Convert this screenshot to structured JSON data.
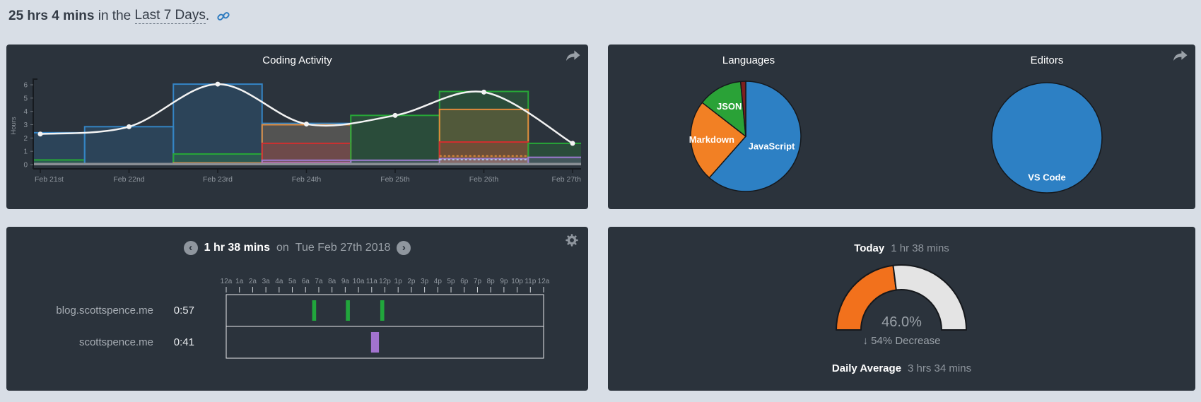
{
  "theme": {
    "page_bg": "#d8dee6",
    "panel_bg": "#2b333c",
    "text_light": "#ffffff",
    "text_muted": "#8f969e",
    "link_blue": "#2e7bbf"
  },
  "header": {
    "total_time": "25 hrs 4 mins",
    "connector": " in the ",
    "range_label": "Last 7 Days",
    "period": ".",
    "link_icon": "chain-link-icon"
  },
  "chart_data": [
    {
      "id": "coding_activity",
      "type": "bar+line",
      "title": "Coding Activity",
      "ylabel": "Hours",
      "ylim": [
        0,
        6
      ],
      "yticks": [
        0,
        1,
        2,
        3,
        4,
        5,
        6
      ],
      "grid": false,
      "categories": [
        "Feb 21st",
        "Feb 22nd",
        "Feb 23rd",
        "Feb 24th",
        "Feb 25th",
        "Feb 26th",
        "Feb 27th"
      ],
      "line_series": {
        "name": "total-hours",
        "color": "#f3f3f3",
        "values": [
          2.3,
          2.85,
          6.05,
          3.05,
          3.7,
          5.45,
          1.6
        ]
      },
      "bar_groups": [
        [
          {
            "hours": 2.4,
            "color": "#3484c4"
          },
          {
            "hours": 0.35,
            "color": "#27a737"
          },
          {
            "hours": 0.08,
            "color": "#8a8f95"
          }
        ],
        [
          {
            "hours": 2.85,
            "color": "#3484c4"
          },
          {
            "hours": 0.08,
            "color": "#8a8f95"
          }
        ],
        [
          {
            "hours": 6.05,
            "color": "#3484c4"
          },
          {
            "hours": 0.8,
            "color": "#27a737"
          },
          {
            "hours": 0.13,
            "color": "#e08a3c"
          },
          {
            "hours": 0.08,
            "color": "#8a8f95"
          }
        ],
        [
          {
            "hours": 3.1,
            "color": "#3484c4"
          },
          {
            "hours": 3.0,
            "color": "#e08a3c"
          },
          {
            "hours": 1.6,
            "color": "#d02f2f"
          },
          {
            "hours": 0.33,
            "color": "#9d7bd0"
          },
          {
            "hours": 0.14,
            "color": "#cc6bbf"
          },
          {
            "hours": 0.08,
            "color": "#8a8f95"
          }
        ],
        [
          {
            "hours": 3.7,
            "color": "#27a737"
          },
          {
            "hours": 0.33,
            "color": "#9d7bd0"
          },
          {
            "hours": 0.08,
            "color": "#8a8f95"
          }
        ],
        [
          {
            "hours": 5.5,
            "color": "#27a737"
          },
          {
            "hours": 4.15,
            "color": "#e08a3c"
          },
          {
            "hours": 1.7,
            "color": "#d02f2f"
          },
          {
            "hours": 0.65,
            "color": "#e08a3c",
            "dashed": true
          },
          {
            "hours": 0.45,
            "color": "#9d7bd0"
          },
          {
            "hours": 0.38,
            "color": "#a9c9e9",
            "dashed": true
          },
          {
            "hours": 0.08,
            "color": "#8a8f95"
          }
        ],
        [
          {
            "hours": 1.6,
            "color": "#27a737"
          },
          {
            "hours": 0.55,
            "color": "#9d7bd0"
          },
          {
            "hours": 0.08,
            "color": "#8a8f95"
          }
        ]
      ]
    },
    {
      "id": "languages",
      "type": "pie",
      "title": "Languages",
      "slices": [
        {
          "label": "JavaScript",
          "percent": 61.5,
          "color": "#2d80c4"
        },
        {
          "label": "Markdown",
          "percent": 24.0,
          "color": "#f28024"
        },
        {
          "label": "JSON",
          "percent": 13.0,
          "color": "#2aa237"
        },
        {
          "label": "",
          "percent": 1.5,
          "color": "#7e1f1f"
        }
      ]
    },
    {
      "id": "editors",
      "type": "pie",
      "title": "Editors",
      "slices": [
        {
          "label": "VS Code",
          "percent": 100,
          "color": "#2d80c4"
        }
      ]
    },
    {
      "id": "daily_timeline",
      "type": "gantt",
      "title_bold": "1 hr 38 mins",
      "title_mid": "on",
      "title_date": "Tue Feb 27th 2018",
      "prev_icon": "‹",
      "next_icon": "›",
      "hour_labels": [
        "12a",
        "1a",
        "2a",
        "3a",
        "4a",
        "5a",
        "6a",
        "7a",
        "8a",
        "9a",
        "10a",
        "11a",
        "12p",
        "1p",
        "2p",
        "3p",
        "4p",
        "5p",
        "6p",
        "7p",
        "8p",
        "9p",
        "10p",
        "11p",
        "12a"
      ],
      "rows": [
        {
          "label": "blog.scottspence.me",
          "duration": "0:57",
          "color": "#21a63c",
          "marks": [
            {
              "start": 6.5,
              "end": 6.8
            },
            {
              "start": 9.05,
              "end": 9.35
            },
            {
              "start": 11.65,
              "end": 11.95
            }
          ]
        },
        {
          "label": "scottspence.me",
          "duration": "0:41",
          "color": "#a273cf",
          "marks": [
            {
              "start": 10.95,
              "end": 11.55
            }
          ]
        }
      ]
    },
    {
      "id": "today_gauge",
      "type": "gauge",
      "label": "Today",
      "value": "1 hr 38 mins",
      "percent": 46.0,
      "percent_label": "46.0%",
      "delta_arrow": "↓",
      "delta_label": "54% Decrease",
      "avg_label": "Daily Average",
      "avg_value": "3 hrs 34 mins",
      "colors": {
        "filled": "#f2711c",
        "empty": "#e4e4e4",
        "outline": "#15181c"
      }
    }
  ]
}
